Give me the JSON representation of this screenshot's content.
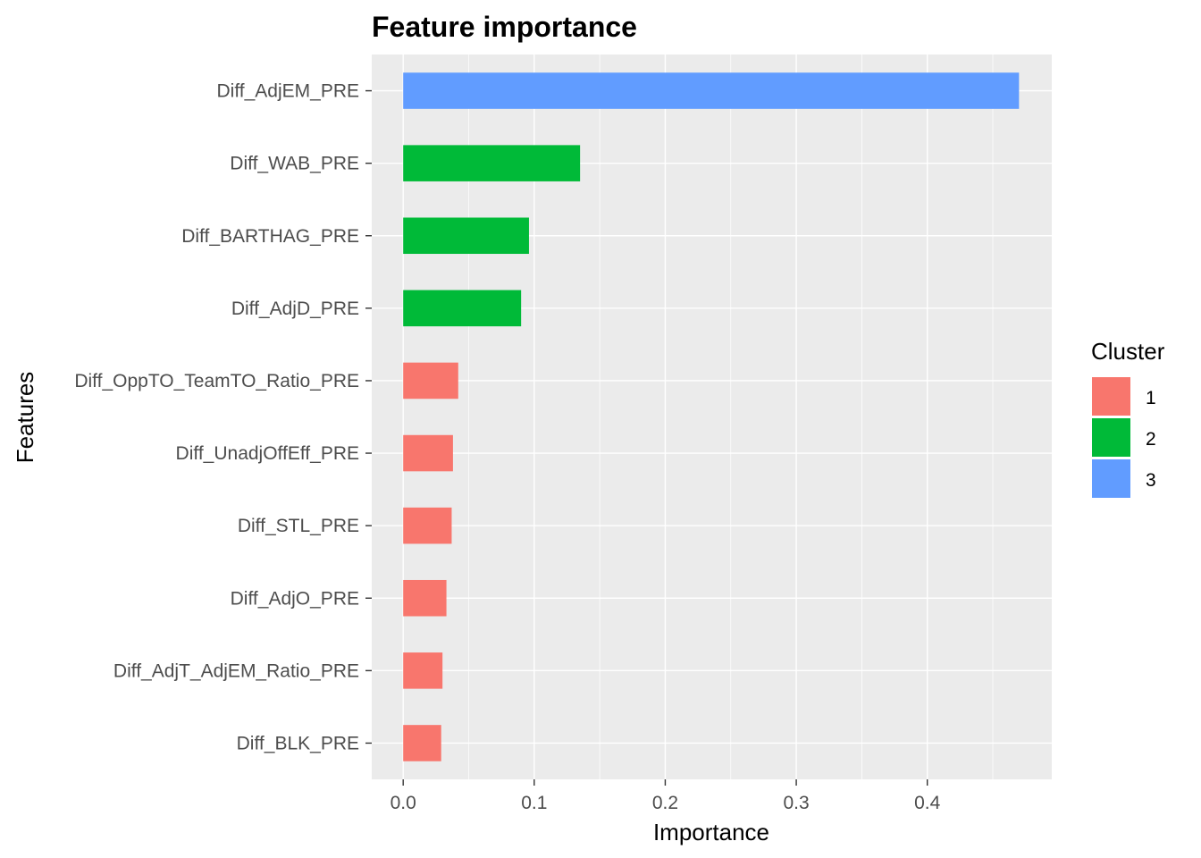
{
  "chart_data": {
    "type": "bar",
    "orientation": "horizontal",
    "title": "Feature importance",
    "xlabel": "Importance",
    "ylabel": "Features",
    "xlim": [
      -0.024,
      0.495
    ],
    "x_ticks": [
      0.0,
      0.1,
      0.2,
      0.3,
      0.4
    ],
    "x_tick_labels": [
      "0.0",
      "0.1",
      "0.2",
      "0.3",
      "0.4"
    ],
    "grid": true,
    "legend": {
      "title": "Cluster",
      "placement": "right",
      "entries": [
        {
          "label": "1",
          "color": "#F8766D"
        },
        {
          "label": "2",
          "color": "#00BA38"
        },
        {
          "label": "3",
          "color": "#619CFF"
        }
      ]
    },
    "bars": [
      {
        "feature": "Diff_AdjEM_PRE",
        "value": 0.47,
        "cluster": "3"
      },
      {
        "feature": "Diff_WAB_PRE",
        "value": 0.135,
        "cluster": "2"
      },
      {
        "feature": "Diff_BARTHAG_PRE",
        "value": 0.096,
        "cluster": "2"
      },
      {
        "feature": "Diff_AdjD_PRE",
        "value": 0.09,
        "cluster": "2"
      },
      {
        "feature": "Diff_OppTO_TeamTO_Ratio_PRE",
        "value": 0.042,
        "cluster": "1"
      },
      {
        "feature": "Diff_UnadjOffEff_PRE",
        "value": 0.038,
        "cluster": "1"
      },
      {
        "feature": "Diff_STL_PRE",
        "value": 0.037,
        "cluster": "1"
      },
      {
        "feature": "Diff_AdjO_PRE",
        "value": 0.033,
        "cluster": "1"
      },
      {
        "feature": "Diff_AdjT_AdjEM_Ratio_PRE",
        "value": 0.03,
        "cluster": "1"
      },
      {
        "feature": "Diff_BLK_PRE",
        "value": 0.029,
        "cluster": "1"
      }
    ]
  }
}
